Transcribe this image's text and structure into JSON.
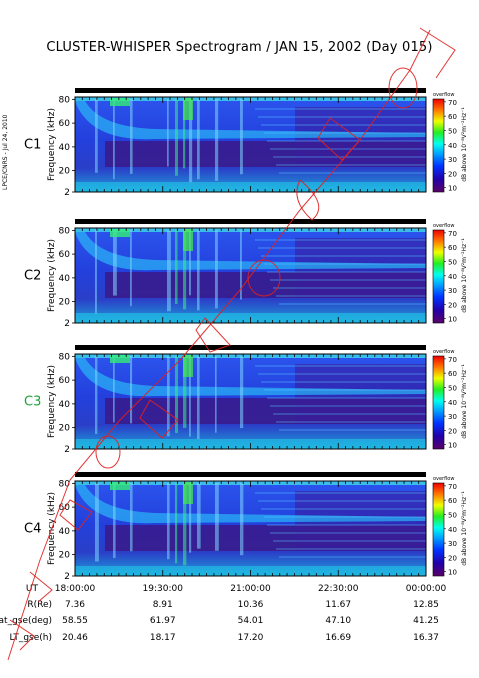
{
  "title": "CLUSTER-WHISPER Spectrogram / JAN 15, 2002 (Day 015)",
  "credit": "LPCE/CNRS - Jul 24, 2010",
  "ylabel": "Frequency (kHz)",
  "yticks": [
    "2",
    "20",
    "40",
    "60",
    "80"
  ],
  "colorbar": {
    "header": "overflow",
    "label": "dB above 10⁻⁸V²m⁻²Hz⁻¹",
    "ticks": [
      "10",
      "20",
      "30",
      "40",
      "50",
      "60",
      "70"
    ]
  },
  "panels": [
    {
      "name": "C1",
      "color": "#000000"
    },
    {
      "name": "C2",
      "color": "#000000"
    },
    {
      "name": "C3",
      "color": "#1fa23a"
    },
    {
      "name": "C4",
      "color": "#000000"
    }
  ],
  "orbit_table": {
    "rows": [
      {
        "label": "UT",
        "values": [
          "18:00:00",
          "19:30:00",
          "21:00:00",
          "22:30:00",
          "00:00:00"
        ]
      },
      {
        "label": "R(Re)",
        "values": [
          "7.36",
          "8.91",
          "10.36",
          "11.67",
          "12.85"
        ]
      },
      {
        "label": "Lat_gse(deg)",
        "values": [
          "58.55",
          "61.97",
          "54.01",
          "47.10",
          "41.25"
        ]
      },
      {
        "label": "LT_gse(h)",
        "values": [
          "20.46",
          "18.17",
          "17.20",
          "16.69",
          "16.37"
        ]
      }
    ]
  },
  "chart_data": {
    "type": "heatmap",
    "title": "CLUSTER-WHISPER Spectrogram / JAN 15, 2002 (Day 015)",
    "xlabel": "UT",
    "ylabel": "Frequency (kHz)",
    "x_ticks": [
      "18:00:00",
      "19:30:00",
      "21:00:00",
      "22:30:00",
      "00:00:00"
    ],
    "ylim": [
      2,
      82
    ],
    "zlim": [
      7,
      72
    ],
    "zlabel": "dB above 10⁻⁸V²m⁻²Hz⁻¹",
    "series": [
      {
        "name": "C1"
      },
      {
        "name": "C2"
      },
      {
        "name": "C3"
      },
      {
        "name": "C4"
      }
    ]
  }
}
